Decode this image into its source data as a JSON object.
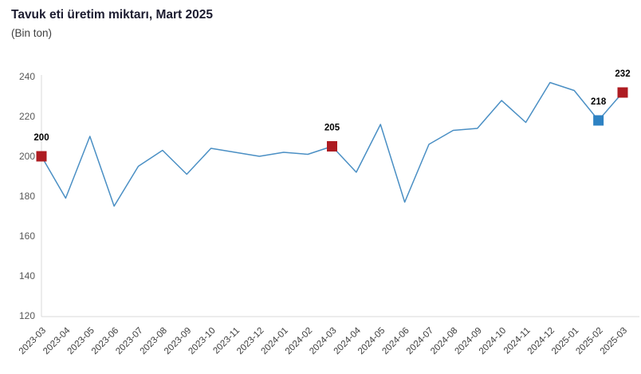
{
  "title": "Tavuk eti üretim miktarı, Mart 2025",
  "subtitle": "(Bin ton)",
  "colors": {
    "line": "#4a8fc4",
    "marker_red": "#ae1c22",
    "marker_blue": "#2e82c3",
    "axis_line": "#d9d9d9",
    "ytick_text": "#595959",
    "xtick_text": "#3d3d3d",
    "point_label_text": "#000000",
    "title_text": "#1c1c30",
    "subtitle_text": "#3f3f3f"
  },
  "chart_data": {
    "type": "line",
    "title": "Tavuk eti üretim miktarı, Mart 2025",
    "subtitle": "(Bin ton)",
    "xlabel": "",
    "ylabel": "",
    "ylim": [
      120,
      240
    ],
    "yticks": [
      240,
      220,
      200,
      180,
      160,
      140,
      120
    ],
    "grid": false,
    "legend": "none",
    "categories": [
      "2023-03",
      "2023-04",
      "2023-05",
      "2023-06",
      "2023-07",
      "2023-08",
      "2023-09",
      "2023-10",
      "2023-11",
      "2023-12",
      "2024-01",
      "2024-02",
      "2024-03",
      "2024-04",
      "2024-05",
      "2024-06",
      "2024-07",
      "2024-08",
      "2024-09",
      "2024-10",
      "2024-11",
      "2024-12",
      "2025-01",
      "2025-02",
      "2025-03"
    ],
    "values": [
      200,
      179,
      210,
      175,
      195,
      203,
      191,
      204,
      202,
      200,
      202,
      201,
      205,
      192,
      216,
      177,
      206,
      213,
      214,
      228,
      217,
      237,
      233,
      218,
      232
    ],
    "highlighted_points": [
      {
        "category": "2023-03",
        "value": 200,
        "label": "200",
        "color": "#ae1c22"
      },
      {
        "category": "2024-03",
        "value": 205,
        "label": "205",
        "color": "#ae1c22"
      },
      {
        "category": "2025-02",
        "value": 218,
        "label": "218",
        "color": "#2e82c3"
      },
      {
        "category": "2025-03",
        "value": 232,
        "label": "232",
        "color": "#ae1c22"
      }
    ]
  }
}
